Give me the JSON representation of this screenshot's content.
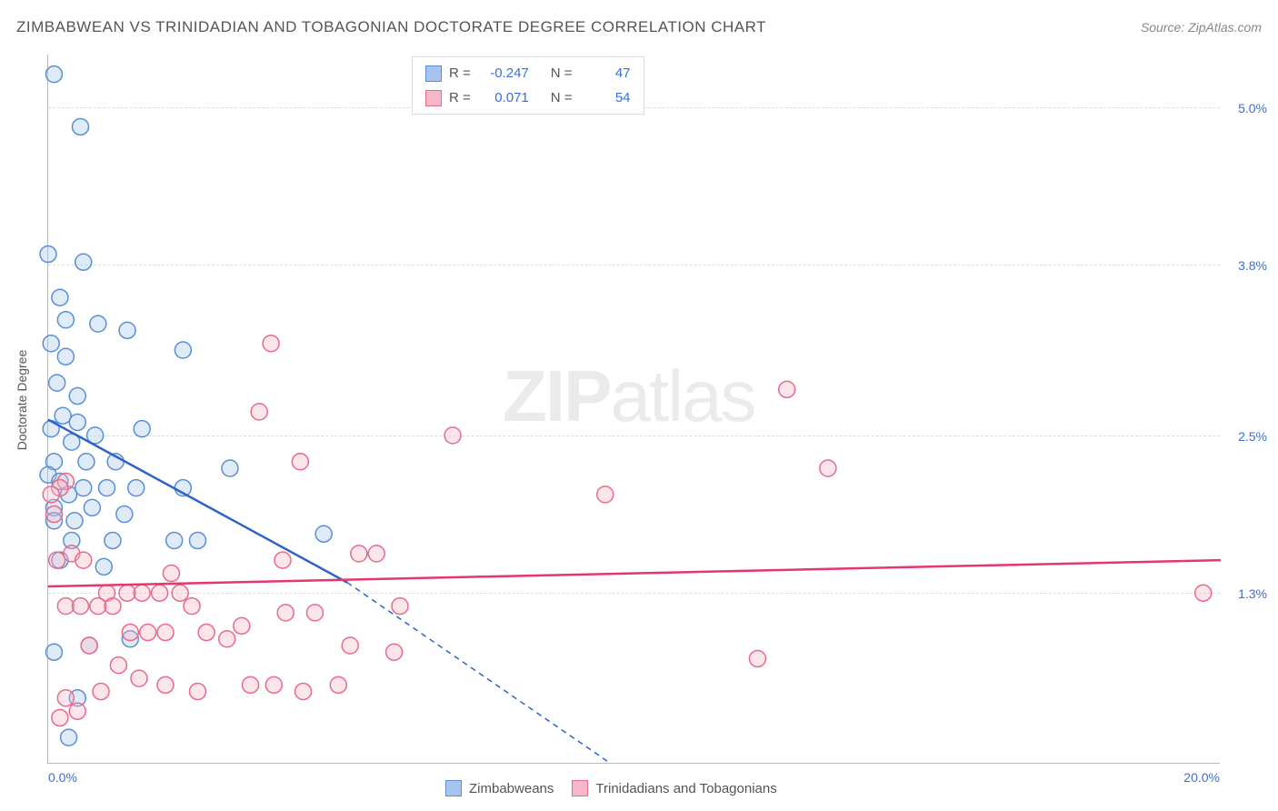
{
  "title": "ZIMBABWEAN VS TRINIDADIAN AND TOBAGONIAN DOCTORATE DEGREE CORRELATION CHART",
  "source": "Source: ZipAtlas.com",
  "watermark_bold": "ZIP",
  "watermark_light": "atlas",
  "yaxis_title": "Doctorate Degree",
  "chart": {
    "type": "scatter",
    "background_color": "#ffffff",
    "grid_color": "#dddddd",
    "axis_color": "#bbbbbb",
    "label_color": "#3b6fd8",
    "label_fontsize": 14,
    "title_fontsize": 17,
    "xlim": [
      0.0,
      20.0
    ],
    "ylim": [
      0.0,
      5.4
    ],
    "xticks": [
      {
        "v": 0.0,
        "label": "0.0%"
      },
      {
        "v": 20.0,
        "label": "20.0%"
      }
    ],
    "yticks": [
      {
        "v": 1.3,
        "label": "1.3%"
      },
      {
        "v": 2.5,
        "label": "2.5%"
      },
      {
        "v": 3.8,
        "label": "3.8%"
      },
      {
        "v": 5.0,
        "label": "5.0%"
      }
    ],
    "marker_radius": 9,
    "marker_fill_opacity": 0.35,
    "marker_stroke_width": 1.5,
    "series": [
      {
        "name": "Zimbabweans",
        "color_stroke": "#5a8fd8",
        "color_fill": "#a7c5ec",
        "r_value": "-0.247",
        "n_value": "47",
        "regression": {
          "solid": {
            "x1": 0.0,
            "y1": 2.62,
            "x2": 5.1,
            "y2": 1.38
          },
          "dashed": {
            "x1": 5.1,
            "y1": 1.38,
            "x2": 9.6,
            "y2": 0.0
          },
          "color": "#2d63c6",
          "width": 2.5,
          "dash_pattern": "6,5"
        },
        "points": [
          [
            0.1,
            5.25
          ],
          [
            0.55,
            4.85
          ],
          [
            0.0,
            3.88
          ],
          [
            0.6,
            3.82
          ],
          [
            0.2,
            3.55
          ],
          [
            0.3,
            3.38
          ],
          [
            0.85,
            3.35
          ],
          [
            1.35,
            3.3
          ],
          [
            0.05,
            3.2
          ],
          [
            0.3,
            3.1
          ],
          [
            2.3,
            3.15
          ],
          [
            0.15,
            2.9
          ],
          [
            0.5,
            2.8
          ],
          [
            0.25,
            2.65
          ],
          [
            0.05,
            2.55
          ],
          [
            0.5,
            2.6
          ],
          [
            1.6,
            2.55
          ],
          [
            0.4,
            2.45
          ],
          [
            0.8,
            2.5
          ],
          [
            0.1,
            2.3
          ],
          [
            0.65,
            2.3
          ],
          [
            1.15,
            2.3
          ],
          [
            3.1,
            2.25
          ],
          [
            0.0,
            2.2
          ],
          [
            0.2,
            2.15
          ],
          [
            0.35,
            2.05
          ],
          [
            0.6,
            2.1
          ],
          [
            1.0,
            2.1
          ],
          [
            1.5,
            2.1
          ],
          [
            2.3,
            2.1
          ],
          [
            0.1,
            1.95
          ],
          [
            0.75,
            1.95
          ],
          [
            0.1,
            1.85
          ],
          [
            0.45,
            1.85
          ],
          [
            1.3,
            1.9
          ],
          [
            4.7,
            1.75
          ],
          [
            0.4,
            1.7
          ],
          [
            1.1,
            1.7
          ],
          [
            2.15,
            1.7
          ],
          [
            2.55,
            1.7
          ],
          [
            0.2,
            1.55
          ],
          [
            0.95,
            1.5
          ],
          [
            1.4,
            0.95
          ],
          [
            0.7,
            0.9
          ],
          [
            0.1,
            0.85
          ],
          [
            0.35,
            0.2
          ],
          [
            0.5,
            0.5
          ]
        ]
      },
      {
        "name": "Trinidadians and Tobagonians",
        "color_stroke": "#e86b8a",
        "color_fill": "#f5b8c8",
        "r_value": "0.071",
        "n_value": "54",
        "regression": {
          "solid": {
            "x1": 0.0,
            "y1": 1.35,
            "x2": 20.0,
            "y2": 1.55
          },
          "dashed": null,
          "color": "#e53670",
          "width": 2.5,
          "dash_pattern": null
        },
        "points": [
          [
            3.8,
            3.2
          ],
          [
            3.6,
            2.68
          ],
          [
            6.9,
            2.5
          ],
          [
            12.6,
            2.85
          ],
          [
            13.3,
            2.25
          ],
          [
            9.5,
            2.05
          ],
          [
            4.3,
            2.3
          ],
          [
            19.7,
            1.3
          ],
          [
            12.1,
            0.8
          ],
          [
            3.3,
            1.05
          ],
          [
            4.05,
            1.15
          ],
          [
            4.55,
            1.15
          ],
          [
            5.3,
            1.6
          ],
          [
            5.6,
            1.6
          ],
          [
            6.0,
            1.2
          ],
          [
            2.45,
            1.2
          ],
          [
            2.7,
            1.0
          ],
          [
            3.05,
            0.95
          ],
          [
            3.45,
            0.6
          ],
          [
            3.85,
            0.6
          ],
          [
            4.35,
            0.55
          ],
          [
            4.95,
            0.6
          ],
          [
            5.15,
            0.9
          ],
          [
            5.9,
            0.85
          ],
          [
            2.0,
            0.6
          ],
          [
            2.55,
            0.55
          ],
          [
            1.0,
            1.3
          ],
          [
            1.35,
            1.3
          ],
          [
            1.6,
            1.3
          ],
          [
            1.9,
            1.3
          ],
          [
            2.25,
            1.3
          ],
          [
            0.3,
            2.15
          ],
          [
            0.2,
            2.1
          ],
          [
            0.05,
            2.05
          ],
          [
            0.1,
            1.9
          ],
          [
            0.4,
            1.6
          ],
          [
            0.6,
            1.55
          ],
          [
            0.15,
            1.55
          ],
          [
            0.3,
            1.2
          ],
          [
            0.55,
            1.2
          ],
          [
            0.85,
            1.2
          ],
          [
            1.1,
            1.2
          ],
          [
            1.4,
            1.0
          ],
          [
            1.7,
            1.0
          ],
          [
            2.0,
            1.0
          ],
          [
            0.7,
            0.9
          ],
          [
            1.2,
            0.75
          ],
          [
            1.55,
            0.65
          ],
          [
            0.9,
            0.55
          ],
          [
            0.3,
            0.5
          ],
          [
            0.5,
            0.4
          ],
          [
            0.2,
            0.35
          ],
          [
            2.1,
            1.45
          ],
          [
            4.0,
            1.55
          ]
        ]
      }
    ]
  },
  "legend_bottom": {
    "items": [
      "Zimbabweans",
      "Trinidadians and Tobagonians"
    ]
  },
  "stats_labels": {
    "r": "R =",
    "n": "N ="
  }
}
